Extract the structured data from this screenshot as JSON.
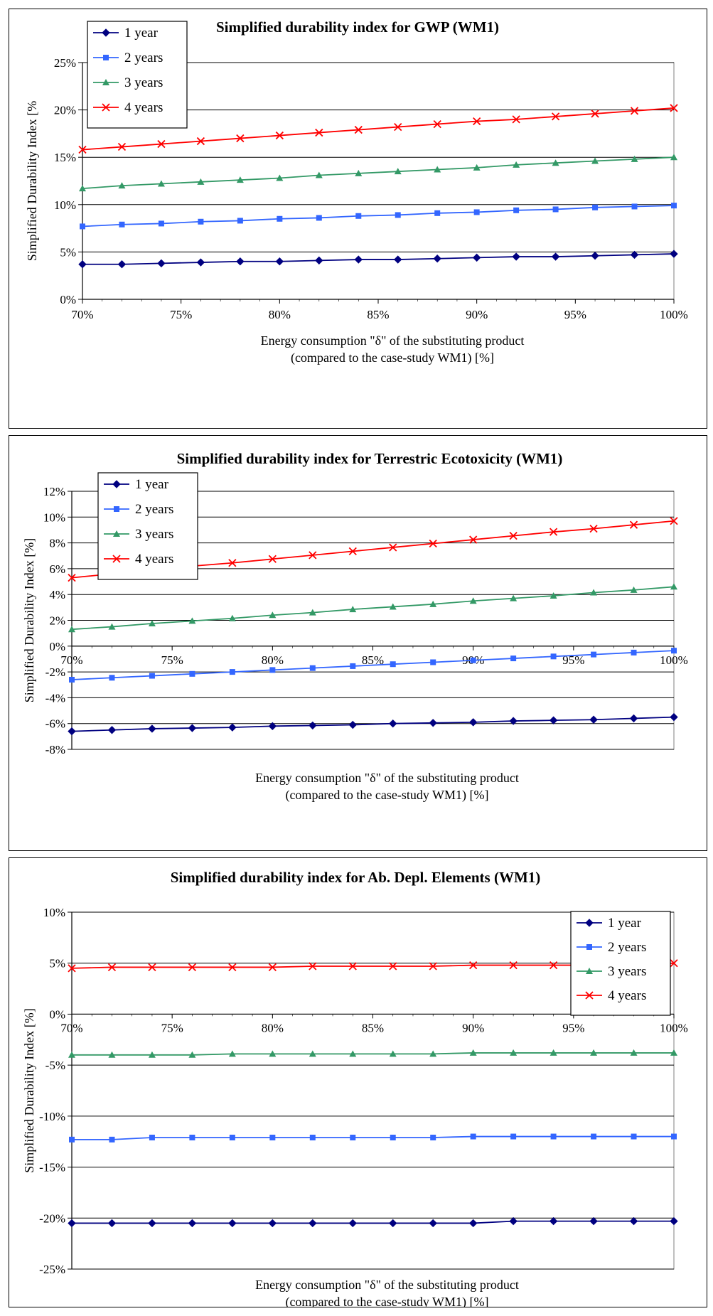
{
  "chart_data": [
    {
      "type": "line",
      "title": "Simplified durability index for GWP (WM1)",
      "xlabel": "Energy consumption \"δ\" of the substituting product",
      "xlabel2": "(compared to the case-study WM1) [%]",
      "ylabel": "Simplified Durability Index [%",
      "xlim": [
        70,
        100
      ],
      "ylim": [
        0,
        25
      ],
      "x": [
        70,
        72,
        74,
        76,
        78,
        80,
        82,
        84,
        86,
        88,
        90,
        92,
        94,
        96,
        98,
        100
      ],
      "xticks": [
        70,
        75,
        80,
        85,
        90,
        95,
        100
      ],
      "xtick_labels": [
        "70%",
        "75%",
        "80%",
        "85%",
        "90%",
        "95%",
        "100%"
      ],
      "yticks": [
        0,
        5,
        10,
        15,
        20,
        25
      ],
      "ytick_labels": [
        "0%",
        "5%",
        "10%",
        "15%",
        "20%",
        "25%"
      ],
      "grid": true,
      "legend_position": "top-left",
      "series": [
        {
          "name": "1 year",
          "color": "#000080",
          "marker": "diamond",
          "values": [
            3.7,
            3.7,
            3.8,
            3.9,
            4.0,
            4.0,
            4.1,
            4.2,
            4.2,
            4.3,
            4.4,
            4.5,
            4.5,
            4.6,
            4.7,
            4.8
          ]
        },
        {
          "name": "2 years",
          "color": "#3366ff",
          "marker": "square",
          "values": [
            7.7,
            7.9,
            8.0,
            8.2,
            8.3,
            8.5,
            8.6,
            8.8,
            8.9,
            9.1,
            9.2,
            9.4,
            9.5,
            9.7,
            9.8,
            9.9
          ]
        },
        {
          "name": "3 years",
          "color": "#339966",
          "marker": "triangle",
          "values": [
            11.7,
            12.0,
            12.2,
            12.4,
            12.6,
            12.8,
            13.1,
            13.3,
            13.5,
            13.7,
            13.9,
            14.2,
            14.4,
            14.6,
            14.8,
            15.0
          ]
        },
        {
          "name": "4 years",
          "color": "#ff0000",
          "marker": "x",
          "values": [
            15.8,
            16.1,
            16.4,
            16.7,
            17.0,
            17.3,
            17.6,
            17.9,
            18.2,
            18.5,
            18.8,
            19.0,
            19.3,
            19.6,
            19.9,
            20.2
          ]
        }
      ]
    },
    {
      "type": "line",
      "title": "Simplified durability index for Terrestric Ecotoxicity (WM1)",
      "xlabel": "Energy consumption \"δ\" of the substituting product",
      "xlabel2": "(compared to the case-study WM1) [%]",
      "ylabel": "Simplified Durability Index [%]",
      "xlim": [
        70,
        100
      ],
      "ylim": [
        -8,
        12
      ],
      "x": [
        70,
        72,
        74,
        76,
        78,
        80,
        82,
        84,
        86,
        88,
        90,
        92,
        94,
        96,
        98,
        100
      ],
      "xticks": [
        70,
        75,
        80,
        85,
        90,
        95,
        100
      ],
      "xtick_labels": [
        "70%",
        "75%",
        "80%",
        "85%",
        "90%",
        "95%",
        "100%"
      ],
      "yticks": [
        -8,
        -6,
        -4,
        -2,
        0,
        2,
        4,
        6,
        8,
        10,
        12
      ],
      "ytick_labels": [
        "-8%",
        "-6%",
        "-4%",
        "-2%",
        "0%",
        "2%",
        "4%",
        "6%",
        "8%",
        "10%",
        "12%"
      ],
      "grid": true,
      "legend_position": "top-left",
      "series": [
        {
          "name": "1 year",
          "color": "#000080",
          "marker": "diamond",
          "values": [
            -6.6,
            -6.5,
            -6.4,
            -6.35,
            -6.3,
            -6.2,
            -6.15,
            -6.1,
            -6.0,
            -5.95,
            -5.9,
            -5.8,
            -5.75,
            -5.7,
            -5.6,
            -5.5
          ]
        },
        {
          "name": "2 years",
          "color": "#3366ff",
          "marker": "square",
          "values": [
            -2.6,
            -2.45,
            -2.3,
            -2.15,
            -2.0,
            -1.85,
            -1.7,
            -1.55,
            -1.4,
            -1.25,
            -1.1,
            -0.95,
            -0.8,
            -0.65,
            -0.5,
            -0.35
          ]
        },
        {
          "name": "3 years",
          "color": "#339966",
          "marker": "triangle",
          "values": [
            1.3,
            1.5,
            1.75,
            1.95,
            2.15,
            2.4,
            2.6,
            2.85,
            3.05,
            3.25,
            3.5,
            3.7,
            3.9,
            4.15,
            4.35,
            4.6
          ]
        },
        {
          "name": "4 years",
          "color": "#ff0000",
          "marker": "x",
          "values": [
            5.3,
            5.6,
            5.9,
            6.2,
            6.45,
            6.75,
            7.05,
            7.35,
            7.65,
            7.95,
            8.25,
            8.55,
            8.85,
            9.1,
            9.4,
            9.7
          ]
        }
      ]
    },
    {
      "type": "line",
      "title": "Simplified durability index for Ab. Depl. Elements (WM1)",
      "xlabel": "Energy consumption \"δ\" of the substituting product",
      "xlabel2": "(compared to the case-study WM1) [%]",
      "ylabel": "Simplified Durability Index [%]",
      "xlim": [
        70,
        100
      ],
      "ylim": [
        -25,
        10
      ],
      "x": [
        70,
        72,
        74,
        76,
        78,
        80,
        82,
        84,
        86,
        88,
        90,
        92,
        94,
        96,
        98,
        100
      ],
      "xticks": [
        70,
        75,
        80,
        85,
        90,
        95,
        100
      ],
      "xtick_labels": [
        "70%",
        "75%",
        "80%",
        "85%",
        "90%",
        "95%",
        "100%"
      ],
      "yticks": [
        -25,
        -20,
        -15,
        -10,
        -5,
        0,
        5,
        10
      ],
      "ytick_labels": [
        "-25%",
        "-20%",
        "-15%",
        "-10%",
        "-5%",
        "0%",
        "5%",
        "10%"
      ],
      "grid": true,
      "legend_position": "top-right",
      "series": [
        {
          "name": "1 year",
          "color": "#000080",
          "marker": "diamond",
          "values": [
            -20.5,
            -20.5,
            -20.5,
            -20.5,
            -20.5,
            -20.5,
            -20.5,
            -20.5,
            -20.5,
            -20.5,
            -20.5,
            -20.3,
            -20.3,
            -20.3,
            -20.3,
            -20.3
          ]
        },
        {
          "name": "2 years",
          "color": "#3366ff",
          "marker": "square",
          "values": [
            -12.3,
            -12.3,
            -12.1,
            -12.1,
            -12.1,
            -12.1,
            -12.1,
            -12.1,
            -12.1,
            -12.1,
            -12.0,
            -12.0,
            -12.0,
            -12.0,
            -12.0,
            -12.0
          ]
        },
        {
          "name": "3 years",
          "color": "#339966",
          "marker": "triangle",
          "values": [
            -4.0,
            -4.0,
            -4.0,
            -4.0,
            -3.9,
            -3.9,
            -3.9,
            -3.9,
            -3.9,
            -3.9,
            -3.8,
            -3.8,
            -3.8,
            -3.8,
            -3.8,
            -3.8
          ]
        },
        {
          "name": "4 years",
          "color": "#ff0000",
          "marker": "x",
          "values": [
            4.5,
            4.6,
            4.6,
            4.6,
            4.6,
            4.6,
            4.7,
            4.7,
            4.7,
            4.7,
            4.8,
            4.8,
            4.8,
            4.8,
            4.8,
            5.0
          ]
        }
      ]
    }
  ]
}
